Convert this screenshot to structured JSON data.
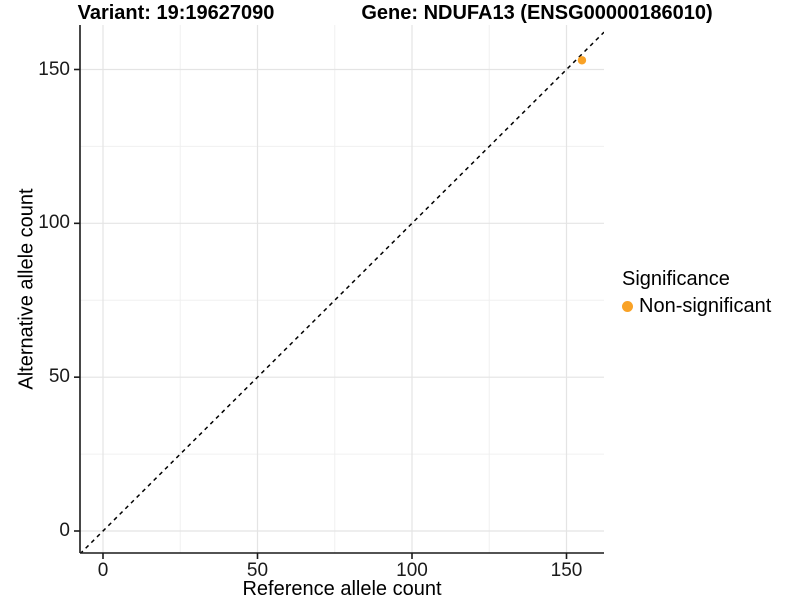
{
  "chart_data": {
    "type": "scatter",
    "title_left": "Variant: 19:19627090",
    "title_right": "Gene: NDUFA13 (ENSG00000186010)",
    "xlabel": "Reference allele count",
    "ylabel": "Alternative allele count",
    "x_ticks": [
      0,
      50,
      100,
      150
    ],
    "y_ticks": [
      0,
      50,
      100,
      150
    ],
    "x_minor_ticks": [
      25,
      75,
      125
    ],
    "y_minor_ticks": [
      25,
      75,
      125
    ],
    "xlim": [
      -7.5,
      162
    ],
    "ylim": [
      -7.3,
      164.5
    ],
    "grid": true,
    "identity_line": {
      "slope": 1,
      "intercept": 0,
      "style": "dashed",
      "color": "#000000"
    },
    "points": [
      {
        "x": 155,
        "y": 153,
        "series": "Non-significant"
      }
    ],
    "legend": {
      "title": "Significance",
      "position": "right",
      "items": [
        {
          "label": "Non-significant",
          "color": "#F9A226"
        }
      ]
    },
    "colors": {
      "point": "#F9A226",
      "axis_line": "#1a1a1a",
      "grid_major": "#e4e4e4",
      "grid_minor": "#f0f0f0",
      "background": "#ffffff"
    }
  }
}
